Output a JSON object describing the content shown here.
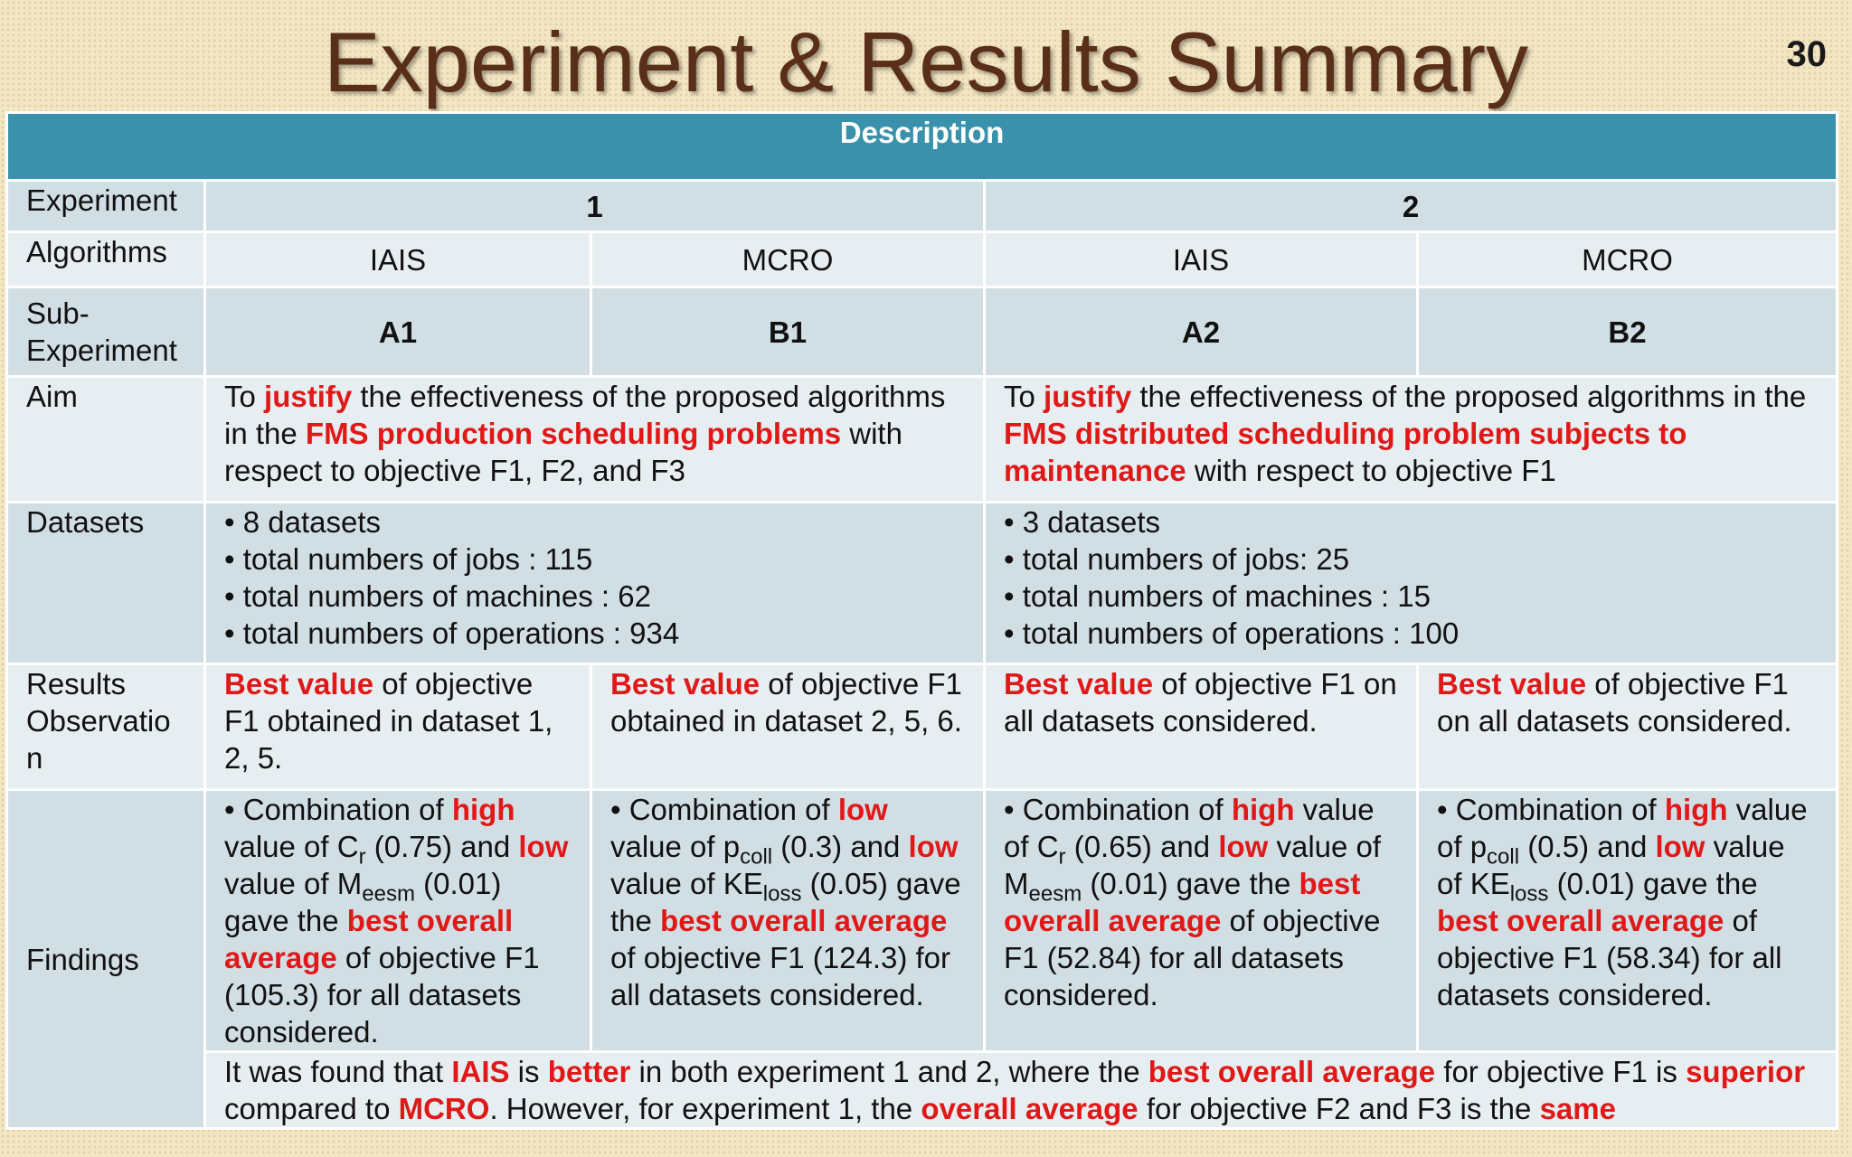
{
  "slide": {
    "title": "Experiment & Results Summary",
    "number": "30"
  },
  "table": {
    "header": "Description",
    "row_labels": {
      "experiment": "Experiment",
      "algorithms": "Algorithms",
      "sub_experiment": [
        "Sub-",
        "Experiment"
      ],
      "aim": "Aim",
      "datasets": "Datasets",
      "results": [
        "Results",
        "Observatio",
        "n"
      ],
      "findings": "Findings"
    },
    "experiments": [
      "1",
      "2"
    ],
    "algorithms": [
      "IAIS",
      "MCRO",
      "IAIS",
      "MCRO"
    ],
    "sub_experiments": [
      "A1",
      "B1",
      "A2",
      "B2"
    ],
    "aim": {
      "exp1": [
        "To ",
        "justify",
        " the effectiveness of the proposed algorithms in the ",
        "FMS production scheduling problems",
        " with respect to objective F1, F2, and F3"
      ],
      "exp2": [
        "To ",
        "justify",
        " the effectiveness of the proposed algorithms in the ",
        "FMS distributed scheduling problem subjects to maintenance",
        " with respect to objective F1"
      ]
    },
    "datasets": {
      "exp1": [
        "• 8 datasets",
        "• total numbers of jobs : 115",
        "• total numbers of machines : 62",
        "• total numbers of operations : 934"
      ],
      "exp2": [
        "• 3 datasets",
        "• total numbers of jobs: 25",
        "• total numbers of machines : 15",
        "• total numbers of operations : 100"
      ]
    },
    "results": [
      [
        "Best value",
        " of objective F1 obtained in dataset 1, 2, 5."
      ],
      [
        "Best value",
        " of objective F1 obtained in dataset 2, 5, 6."
      ],
      [
        "Best value",
        " of objective F1 on all datasets considered."
      ],
      [
        "Best value",
        " of objective F1 on all datasets considered."
      ]
    ],
    "findings": [
      {
        "t1": "• Combination of ",
        "r1": "high",
        "t2": " value of C",
        "s1": "r",
        "t3": " (0.75) and ",
        "r2": "low",
        "t4": " value of M",
        "s2": "eesm",
        "t5": " (0.01) gave the ",
        "r3": "best overall average",
        "t6": " of objective F1 (105.3) for all datasets considered."
      },
      {
        "t1": "• Combination of ",
        "r1": "low",
        "t2": " value of p",
        "s1": "coll",
        "t3": " (0.3) and ",
        "r2": "low",
        "t4": " value of KE",
        "s2": "loss",
        "t5": " (0.05) gave the ",
        "r3": "best overall average",
        "t6": " of objective F1 (124.3) for all datasets considered."
      },
      {
        "t1": "• Combination of ",
        "r1": "high",
        "t2": " value of C",
        "s1": "r",
        "t3": " (0.65) and ",
        "r2": "low",
        "t4": " value of M",
        "s2": "eesm",
        "t5": "  (0.01) gave the ",
        "r3": "best overall average",
        "t6": " of objective F1 (52.84) for all datasets considered."
      },
      {
        "t1": "• Combination of ",
        "r1": "high",
        "t2": " value of p",
        "s1": "coll",
        "t3": "  (0.5) and ",
        "r2": "low",
        "t4": " value of KE",
        "s2": "loss",
        "t5": " (0.01) gave the ",
        "r3": "best overall average",
        "t6": " of objective F1 (58.34) for all datasets considered."
      }
    ],
    "conclusion": [
      "It was found that ",
      "IAIS",
      " is ",
      "better",
      " in both experiment 1 and 2, where the ",
      "best overall average",
      " for objective F1 is ",
      "superior",
      " compared to ",
      "MCRO",
      ". However, for experiment 1, the ",
      "overall average",
      " for objective F2 and F3 is the ",
      "same"
    ]
  }
}
